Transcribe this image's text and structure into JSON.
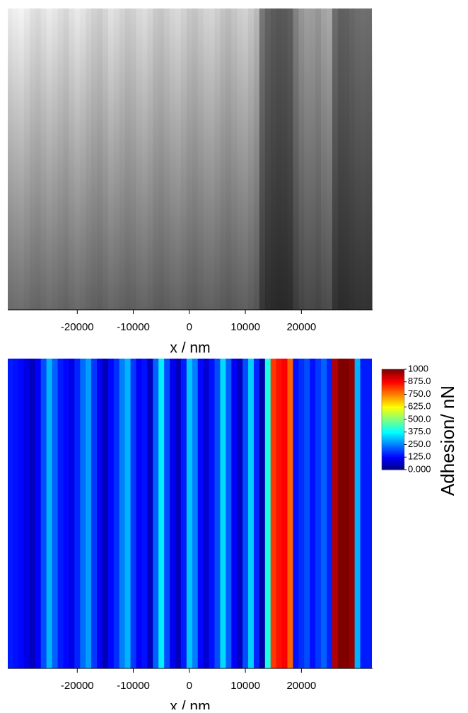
{
  "chart_data": [
    {
      "type": "heatmap",
      "x_label": "x / nm",
      "colormap": "gray",
      "x": [
        -32000,
        -31000,
        -30000,
        -29000,
        -28000,
        -27000,
        -26000,
        -25000,
        -24000,
        -23000,
        -22000,
        -21000,
        -20000,
        -19000,
        -18000,
        -17000,
        -16000,
        -15000,
        -14000,
        -13000,
        -12000,
        -11000,
        -10000,
        -9000,
        -8000,
        -7000,
        -6000,
        -5000,
        -4000,
        -3000,
        -2000,
        -1000,
        0,
        1000,
        2000,
        3000,
        4000,
        5000,
        6000,
        7000,
        8000,
        9000,
        10000,
        11000,
        12000,
        13000,
        14000,
        15000,
        16000,
        17000,
        18000,
        19000,
        20000,
        21000,
        22000,
        23000,
        24000,
        25000,
        26000,
        27000,
        28000,
        29000,
        30000,
        31000,
        32000
      ],
      "values": [
        235,
        240,
        244,
        236,
        225,
        220,
        228,
        236,
        230,
        222,
        215,
        226,
        234,
        228,
        218,
        210,
        205,
        214,
        226,
        220,
        212,
        204,
        208,
        218,
        222,
        214,
        202,
        198,
        206,
        214,
        218,
        210,
        200,
        196,
        204,
        212,
        214,
        206,
        196,
        190,
        198,
        206,
        210,
        200,
        186,
        120,
        100,
        92,
        88,
        90,
        96,
        130,
        150,
        160,
        158,
        150,
        164,
        170,
        110,
        96,
        98,
        104,
        110,
        112,
        110
      ],
      "xlim": [
        -32400,
        32700
      ],
      "xticks": [
        -20000,
        -10000,
        0,
        10000,
        20000
      ]
    },
    {
      "type": "heatmap",
      "x_label": "x / nm",
      "colormap": "jet",
      "x": [
        -32000,
        -31000,
        -30000,
        -29000,
        -28000,
        -27000,
        -26000,
        -25000,
        -24000,
        -23000,
        -22000,
        -21000,
        -20000,
        -19000,
        -18000,
        -17000,
        -16000,
        -15000,
        -14000,
        -13000,
        -12000,
        -11000,
        -10000,
        -9000,
        -8000,
        -7000,
        -6000,
        -5000,
        -4000,
        -3000,
        -2000,
        -1000,
        0,
        1000,
        2000,
        3000,
        4000,
        5000,
        6000,
        7000,
        8000,
        9000,
        10000,
        11000,
        12000,
        13000,
        14000,
        15000,
        16000,
        17000,
        18000,
        19000,
        20000,
        21000,
        22000,
        23000,
        24000,
        25000,
        26000,
        27000,
        28000,
        29000,
        30000,
        31000,
        32000
      ],
      "values": [
        150,
        140,
        130,
        100,
        60,
        120,
        200,
        300,
        220,
        150,
        130,
        100,
        160,
        230,
        280,
        180,
        120,
        50,
        130,
        170,
        250,
        300,
        180,
        120,
        140,
        60,
        220,
        360,
        200,
        110,
        60,
        150,
        320,
        250,
        130,
        80,
        140,
        200,
        340,
        220,
        120,
        60,
        200,
        330,
        160,
        40,
        400,
        820,
        860,
        880,
        780,
        140,
        170,
        200,
        140,
        180,
        220,
        160,
        950,
        1000,
        1000,
        980,
        300,
        150,
        150
      ],
      "xlim": [
        -32400,
        32700
      ],
      "xticks": [
        -20000,
        -10000,
        0,
        10000,
        20000
      ],
      "colorbar": {
        "title": "Adhesion/ nN",
        "lim": [
          0,
          1000
        ],
        "ticks": [
          {
            "value": 0,
            "label": "0.000"
          },
          {
            "value": 125,
            "label": "125.0"
          },
          {
            "value": 250,
            "label": "250.0"
          },
          {
            "value": 375,
            "label": "375.0"
          },
          {
            "value": 500,
            "label": "500.0"
          },
          {
            "value": 625,
            "label": "625.0"
          },
          {
            "value": 750,
            "label": "750.0"
          },
          {
            "value": 875,
            "label": "875.0"
          },
          1000
        ]
      }
    }
  ]
}
